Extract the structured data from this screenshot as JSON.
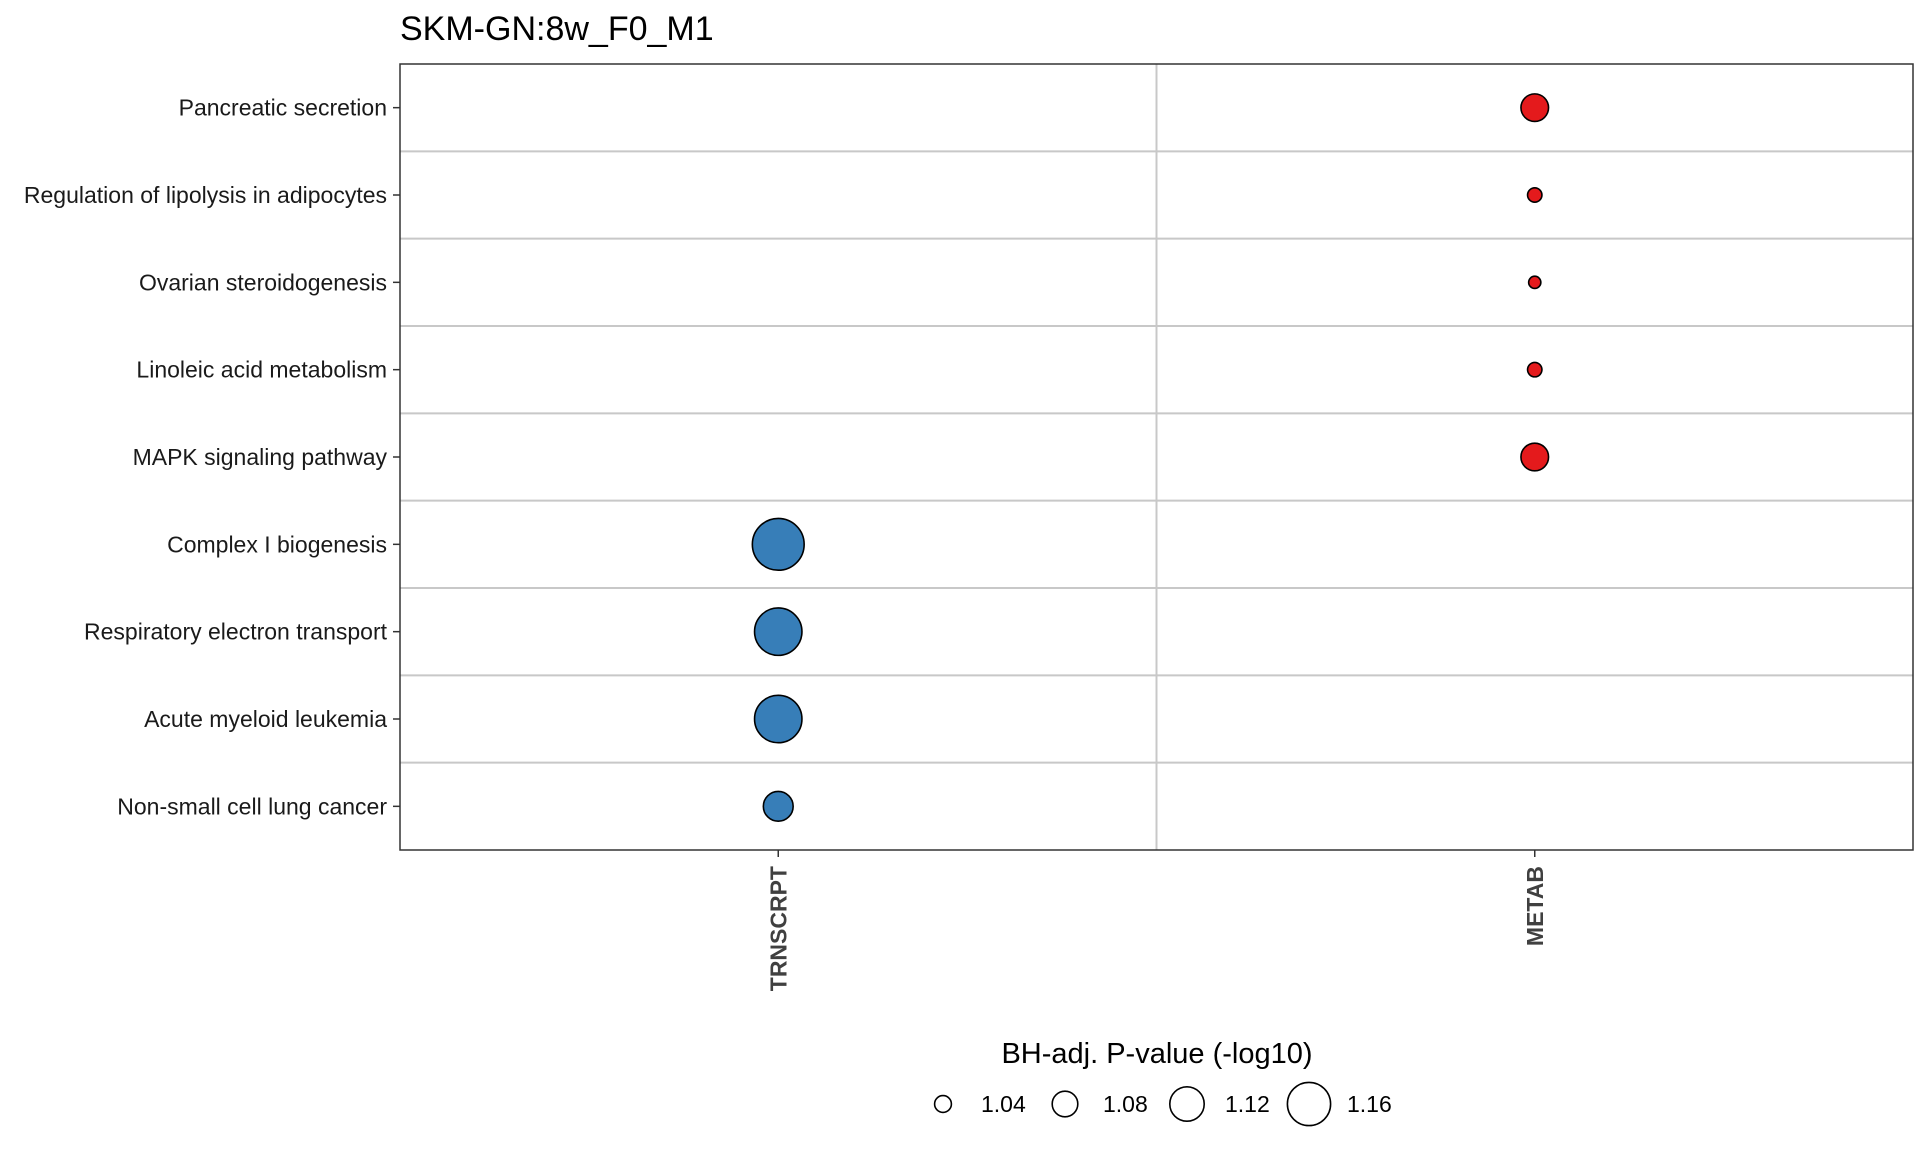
{
  "chart_data": {
    "type": "scatter",
    "title": "SKM-GN:8w_F0_M1",
    "categories_x": [
      "TRNSCRPT",
      "METAB"
    ],
    "categories_y": [
      "Pancreatic secretion",
      "Regulation of lipolysis in adipocytes",
      "Ovarian steroidogenesis",
      "Linoleic acid metabolism",
      "MAPK signaling pathway",
      "Complex I biogenesis",
      "Respiratory electron transport",
      "Acute myeloid leukemia",
      "Non-small cell lung cancer"
    ],
    "points": [
      {
        "x": "METAB",
        "y": "Pancreatic secretion",
        "value": 1.08,
        "color": "#e41a1c"
      },
      {
        "x": "METAB",
        "y": "Regulation of lipolysis in adipocytes",
        "value": 1.02,
        "color": "#e41a1c"
      },
      {
        "x": "METAB",
        "y": "Ovarian steroidogenesis",
        "value": 1.01,
        "color": "#e41a1c"
      },
      {
        "x": "METAB",
        "y": "Linoleic acid metabolism",
        "value": 1.02,
        "color": "#e41a1c"
      },
      {
        "x": "METAB",
        "y": "MAPK signaling pathway",
        "value": 1.08,
        "color": "#e41a1c"
      },
      {
        "x": "TRNSCRPT",
        "y": "Complex I biogenesis",
        "value": 1.19,
        "color": "#377eb8"
      },
      {
        "x": "TRNSCRPT",
        "y": "Respiratory electron transport",
        "value": 1.17,
        "color": "#377eb8"
      },
      {
        "x": "TRNSCRPT",
        "y": "Acute myeloid leukemia",
        "value": 1.17,
        "color": "#377eb8"
      },
      {
        "x": "TRNSCRPT",
        "y": "Non-small cell lung cancer",
        "value": 1.09,
        "color": "#377eb8"
      }
    ],
    "size_legend": {
      "title": "BH-adj. P-value (-log10)",
      "values": [
        1.04,
        1.08,
        1.12,
        1.16
      ],
      "labels": [
        "1.04",
        "1.08",
        "1.12",
        "1.16"
      ],
      "placement": "bottom"
    },
    "grid": true
  }
}
